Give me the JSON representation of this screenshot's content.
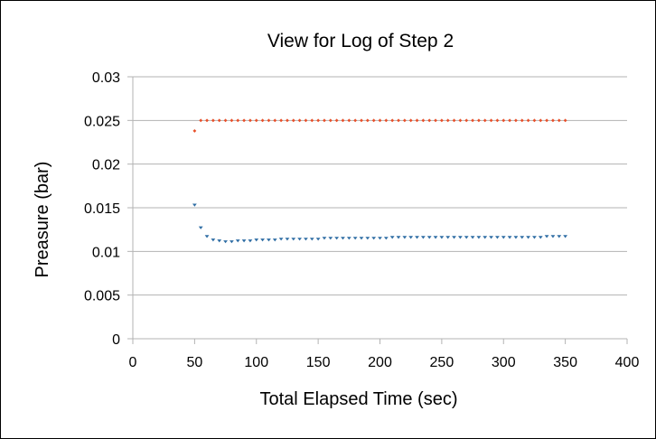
{
  "chart_data": {
    "type": "scatter",
    "title": "View for Log of Step 2",
    "xlabel": "Total Elapsed Time (sec)",
    "ylabel": "Preasure (bar)",
    "xlim": [
      0,
      400
    ],
    "ylim": [
      0,
      0.03
    ],
    "x_ticks": [
      "0",
      "50",
      "100",
      "150",
      "200",
      "250",
      "300",
      "350",
      "400"
    ],
    "y_ticks": [
      "0",
      "0.005",
      "0.01",
      "0.015",
      "0.02",
      "0.025",
      "0.03"
    ],
    "grid": "horizontal",
    "legend": "none",
    "series": [
      {
        "color": "#e8502a",
        "marker": "diamond",
        "x": [
          50,
          55,
          60,
          65,
          70,
          75,
          80,
          85,
          90,
          95,
          100,
          105,
          110,
          115,
          120,
          125,
          130,
          135,
          140,
          145,
          150,
          155,
          160,
          165,
          170,
          175,
          180,
          185,
          190,
          195,
          200,
          205,
          210,
          215,
          220,
          225,
          230,
          235,
          240,
          245,
          250,
          255,
          260,
          265,
          270,
          275,
          280,
          285,
          290,
          295,
          300,
          305,
          310,
          315,
          320,
          325,
          330,
          335,
          340,
          345,
          350
        ],
        "y": [
          0.0238,
          0.025,
          0.025,
          0.025,
          0.025,
          0.025,
          0.025,
          0.025,
          0.025,
          0.025,
          0.025,
          0.025,
          0.025,
          0.025,
          0.025,
          0.025,
          0.025,
          0.025,
          0.025,
          0.025,
          0.025,
          0.025,
          0.025,
          0.025,
          0.025,
          0.025,
          0.025,
          0.025,
          0.025,
          0.025,
          0.025,
          0.025,
          0.025,
          0.025,
          0.025,
          0.025,
          0.025,
          0.025,
          0.025,
          0.025,
          0.025,
          0.025,
          0.025,
          0.025,
          0.025,
          0.025,
          0.025,
          0.025,
          0.025,
          0.025,
          0.025,
          0.025,
          0.025,
          0.025,
          0.025,
          0.025,
          0.025,
          0.025,
          0.025,
          0.025,
          0.025
        ]
      },
      {
        "color": "#2e6da4",
        "marker": "triangle-down",
        "x": [
          50,
          55,
          60,
          65,
          70,
          75,
          80,
          85,
          90,
          95,
          100,
          105,
          110,
          115,
          120,
          125,
          130,
          135,
          140,
          145,
          150,
          155,
          160,
          165,
          170,
          175,
          180,
          185,
          190,
          195,
          200,
          205,
          210,
          215,
          220,
          225,
          230,
          235,
          240,
          245,
          250,
          255,
          260,
          265,
          270,
          275,
          280,
          285,
          290,
          295,
          300,
          305,
          310,
          315,
          320,
          325,
          330,
          335,
          340,
          345,
          350
        ],
        "y": [
          0.0153,
          0.0127,
          0.0117,
          0.0113,
          0.0112,
          0.0111,
          0.0111,
          0.0112,
          0.0112,
          0.0112,
          0.0113,
          0.0113,
          0.0113,
          0.0113,
          0.0114,
          0.0114,
          0.0114,
          0.0114,
          0.0114,
          0.0114,
          0.0114,
          0.0115,
          0.0115,
          0.0115,
          0.0115,
          0.0115,
          0.0115,
          0.0115,
          0.0115,
          0.0115,
          0.0115,
          0.0115,
          0.0116,
          0.0116,
          0.0116,
          0.0116,
          0.0116,
          0.0116,
          0.0116,
          0.0116,
          0.0116,
          0.0116,
          0.0116,
          0.0116,
          0.0116,
          0.0116,
          0.0116,
          0.0116,
          0.0116,
          0.0116,
          0.0116,
          0.0116,
          0.0116,
          0.0116,
          0.0116,
          0.0116,
          0.0116,
          0.0117,
          0.0117,
          0.0117,
          0.0117
        ]
      }
    ]
  }
}
